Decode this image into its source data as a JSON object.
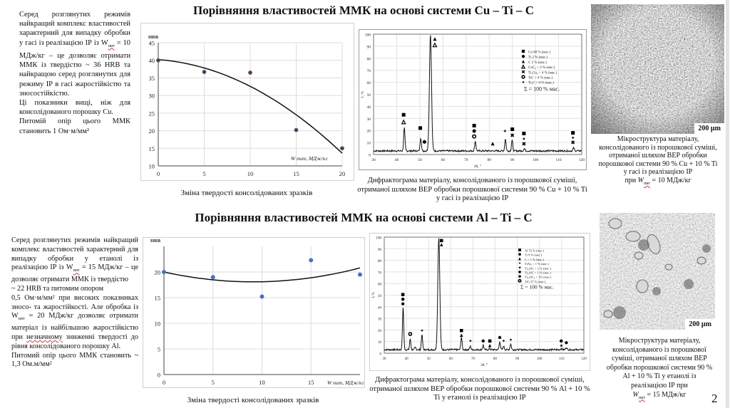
{
  "page": {
    "number": "2"
  },
  "section_cu": {
    "title": "Порівняння властивостей ММК на основі системи Cu – Ti – C",
    "description": [
      "Серед розглянутих режимів найкращий комплекс властивостей характерний для випадку обробки у гасі із реалізацією ІР із W",
      "пит",
      " = 10 МДж/кг – це дозволяє отримати ММК із твердістю ~ 36 HRB та найкращою серед розглянутих для режиму ІР в гасі жаростійкістю та зносостійкістю.",
      "Ці показники вищі, ніж для консолідованого порошку Cu.",
      "Питомій опір цього ММК становить 1 Ом·м/мм²"
    ],
    "hardness_caption": "Зміна твердості консолідованих зразків",
    "xrd_caption": "Дифрактограма матеріалу, консолідованого із порошкової суміші, отриманої шляхом ВЕР обробки порошкової системи 90 % Cu + 10 % Ti у гасі із реалізацією ІР",
    "micro_caption_lines": [
      "Мікроструктура матеріалу,",
      "консолідованого із порошкової суміші,",
      "отриманої шляхом ВЕР обробки",
      "порошкової системи 90 % Cu + 10 % Ti",
      "у гасі із реалізацією ІР"
    ],
    "micro_caption_last": {
      "pre": "при ",
      "w": "W",
      "sub": "пит",
      "post": " = 10 МДж/кг"
    },
    "scale_bar": "200 µm"
  },
  "section_al": {
    "title": "Порівняння властивостей ММК на основі системи Al – Ti – C",
    "description": [
      "Серед розглянутих режимів найкращий комплекс властивостей характерний для випадку обробки у етанолі із реалізацією ІР із W",
      "пит",
      " = 15 МДж/кг – це дозволяє отримати ММК із твердістю",
      "~ 22 HRB та питомим опором",
      "0,5 Ом·м/мм² при високих показниках зносо- та жаростійкості. Але обробка із W",
      "пит",
      " = 20 МДж/кг дозволяє отримати матеріал із найбільшою жаростійкістю при ",
      "незначному",
      " зниженні твердості до рівня консолідованого порошку Al.",
      "Питомий опір цього ММК становить ~ 1,3 Ом.м/мм²"
    ],
    "hardness_caption": "Зміна твердості консолідованих зразків",
    "xrd_caption": "Дифрактограма матеріалу, консолідованого із порошкової суміші, отриманої шляхом ВЕР обробки порошкової системи 90 % Al + 10 % Ti у етанолі із реалізацією ІР",
    "micro_caption_lines": [
      "Мікроструктура матеріалу,",
      "консолідованого із порошкової",
      "суміші, отриманої шляхом ВЕР",
      "обробки порошкової системи 90 %",
      "Al + 10 % Ti у етанолі із",
      "реалізацією ІР при"
    ],
    "micro_caption_last": {
      "pre": "",
      "w": "W",
      "sub": "пит",
      "post": " = 15 МДж/кг"
    },
    "scale_bar": "200 µm"
  },
  "chart_data": [
    {
      "id": "cu_hardness",
      "type": "scatter",
      "title": "",
      "ylabel": "HRB",
      "xlabel": "W пит, МДж/кг",
      "x": [
        0,
        5,
        10,
        15,
        20
      ],
      "y": [
        40,
        36.7,
        36.5,
        20.2,
        15
      ],
      "trendline": {
        "type": "polynomial",
        "x": [
          0,
          5,
          10,
          15,
          20
        ],
        "y": [
          40.2,
          37.8,
          32.6,
          24.6,
          13.6
        ]
      },
      "xlim": [
        0,
        20
      ],
      "ylim": [
        10,
        45
      ],
      "xticks": [
        0,
        5,
        10,
        15,
        20
      ],
      "yticks": [
        10,
        15,
        20,
        25,
        30,
        35,
        40,
        45
      ],
      "grid": true,
      "marker_color": "#2b3f8f",
      "marker_edge": "#b0604a"
    },
    {
      "id": "cu_xrd",
      "type": "line",
      "ylabel": "I, %",
      "xlabel": "2θ, °",
      "xlim": [
        30,
        120
      ],
      "ylim": [
        0,
        100
      ],
      "xticks": [
        30,
        40,
        50,
        60,
        70,
        80,
        90,
        100,
        110,
        120
      ],
      "yticks": [
        0,
        10,
        20,
        30,
        40,
        50,
        60,
        70,
        80,
        90,
        100
      ],
      "grid": true,
      "baseline": 3,
      "peaks": [
        {
          "x": 43.3,
          "y": 22
        },
        {
          "x": 50.4,
          "y": 14
        },
        {
          "x": 54.6,
          "y": 100
        },
        {
          "x": 74.0,
          "y": 11
        },
        {
          "x": 87.0,
          "y": 13
        },
        {
          "x": 89.9,
          "y": 12
        },
        {
          "x": 95.2,
          "y": 5
        },
        {
          "x": 116.5,
          "y": 5.5
        }
      ],
      "legend": [
        {
          "symbol": "square",
          "label": "Cu 88 % (мас.)"
        },
        {
          "symbol": "hexagon",
          "label": "Ti  2  % (мас.)"
        },
        {
          "symbol": "triangle",
          "label": "C 2 % (мас.)"
        },
        {
          "symbol": "triangle-open",
          "label": "CuC₂ < 4 %  (мас.)"
        },
        {
          "symbol": "cross",
          "label": "Ti₂Cu₃ < 4 %  (мас.)"
        },
        {
          "symbol": "circle-open",
          "label": "TiC < 4 % (мас.)"
        },
        {
          "symbol": "diamond",
          "label": "Ti₂C  < 4 % (мас.)"
        }
      ],
      "sum_label": "Σ = 100 % мас.",
      "legend_position": "top-right",
      "markers": [
        {
          "x": 43,
          "y": 33,
          "symbol": "square"
        },
        {
          "x": 43,
          "y": 27,
          "symbol": "triangle-open"
        },
        {
          "x": 50.2,
          "y": 22,
          "symbol": "square"
        },
        {
          "x": 52,
          "y": 10.5,
          "symbol": "hexagon"
        },
        {
          "x": 56.5,
          "y": 96,
          "symbol": "triangle"
        },
        {
          "x": 56.5,
          "y": 91,
          "symbol": "triangle-open"
        },
        {
          "x": 73.5,
          "y": 24,
          "symbol": "square"
        },
        {
          "x": 73.5,
          "y": 19.5,
          "symbol": "hexagon"
        },
        {
          "x": 73.5,
          "y": 15,
          "symbol": "circle-open"
        },
        {
          "x": 81.5,
          "y": 9,
          "symbol": "triangle"
        },
        {
          "x": 86.8,
          "y": 19.5,
          "symbol": "diamond"
        },
        {
          "x": 90,
          "y": 21,
          "symbol": "square"
        },
        {
          "x": 90,
          "y": 16,
          "symbol": "cross"
        },
        {
          "x": 95,
          "y": 17.5,
          "symbol": "square"
        },
        {
          "x": 95,
          "y": 13,
          "symbol": "diamond"
        },
        {
          "x": 95,
          "y": 9,
          "symbol": "cross"
        },
        {
          "x": 116.2,
          "y": 18,
          "symbol": "square"
        },
        {
          "x": 116.2,
          "y": 14,
          "symbol": "diamond"
        },
        {
          "x": 116.2,
          "y": 10,
          "symbol": "cross"
        }
      ]
    },
    {
      "id": "al_hardness",
      "type": "scatter",
      "title": "",
      "ylabel": "HRB",
      "xlabel": "W пит, МДж/кг",
      "x": [
        0,
        5,
        10,
        15,
        20
      ],
      "y": [
        20,
        19,
        15.2,
        22.3,
        19.5
      ],
      "trendline": {
        "type": "polynomial",
        "x": [
          0,
          5,
          10,
          15,
          20
        ],
        "y": [
          20,
          18.5,
          18.1,
          18.9,
          20.8
        ]
      },
      "xlim": [
        0,
        20
      ],
      "ylim": [
        0,
        25
      ],
      "xticks": [
        0,
        5,
        10,
        15
      ],
      "yticks": [
        0,
        5,
        10,
        15,
        20
      ],
      "grid": true,
      "marker_color": "#4472c4"
    },
    {
      "id": "al_xrd",
      "type": "line",
      "ylabel": "I, %",
      "xlabel": "2θ, °",
      "xlim": [
        30,
        120
      ],
      "ylim": [
        0,
        100
      ],
      "xticks": [
        30,
        40,
        50,
        60,
        70,
        80,
        90,
        100,
        110,
        120
      ],
      "yticks": [
        0,
        10,
        20,
        30,
        40,
        50,
        60,
        70,
        80,
        90,
        100
      ],
      "grid": true,
      "baseline": 3,
      "peaks": [
        {
          "x": 38.5,
          "y": 40
        },
        {
          "x": 41.7,
          "y": 12
        },
        {
          "x": 44,
          "y": 5
        },
        {
          "x": 47.0,
          "y": 16
        },
        {
          "x": 54.6,
          "y": 100
        },
        {
          "x": 64.8,
          "y": 14
        },
        {
          "x": 68.8,
          "y": 6
        },
        {
          "x": 74.6,
          "y": 7
        },
        {
          "x": 77.6,
          "y": 4
        },
        {
          "x": 82.1,
          "y": 10
        },
        {
          "x": 83.8,
          "y": 6
        },
        {
          "x": 87.0,
          "y": 8
        },
        {
          "x": 109.8,
          "y": 4
        },
        {
          "x": 112.1,
          "y": 5
        }
      ],
      "legend": [
        {
          "symbol": "square",
          "label": "Al 53 % (мас.)"
        },
        {
          "symbol": "hexagon",
          "label": "Ti 9 % (мас.)"
        },
        {
          "symbol": "triangle",
          "label": "C < 1 % (мас.)"
        },
        {
          "symbol": "diamond",
          "label": "TiAl₃ < 1 % (мас.)"
        },
        {
          "symbol": "star",
          "label": "Ti₃AlC < 1 % (мас.)"
        },
        {
          "symbol": "pentagon",
          "label": "Ti₂AlC < 1 % (мас.)"
        },
        {
          "symbol": "pentagon",
          "label": "Ti₃AlC₂ < 1% (мас.)"
        },
        {
          "symbol": "circle-open",
          "label": "TiC  37 % (мас.)"
        }
      ],
      "sum_label": "Σ = 100 % мас.",
      "legend_position": "top-right",
      "markers": [
        {
          "x": 38.4,
          "y": 50.5,
          "symbol": "square"
        },
        {
          "x": 38.4,
          "y": 46.5,
          "symbol": "hexagon"
        },
        {
          "x": 38.4,
          "y": 42.5,
          "symbol": "pentagon"
        },
        {
          "x": 41.7,
          "y": 16.5,
          "symbol": "circle-open"
        },
        {
          "x": 47.0,
          "y": 19.5,
          "symbol": "diamond"
        },
        {
          "x": 55.8,
          "y": 97,
          "symbol": "square"
        },
        {
          "x": 55.8,
          "y": 93.5,
          "symbol": "triangle"
        },
        {
          "x": 64.8,
          "y": 19.5,
          "symbol": "square"
        },
        {
          "x": 64.8,
          "y": 15.5,
          "symbol": "triangle"
        },
        {
          "x": 68.8,
          "y": 10.5,
          "symbol": "diamond"
        },
        {
          "x": 74.6,
          "y": 10.5,
          "symbol": "pentagon"
        },
        {
          "x": 77.6,
          "y": 10.5,
          "symbol": "square"
        },
        {
          "x": 77.6,
          "y": 6.5,
          "symbol": "triangle"
        },
        {
          "x": 82.1,
          "y": 13.5,
          "symbol": "pentagon"
        },
        {
          "x": 83.8,
          "y": 10.5,
          "symbol": "diamond"
        },
        {
          "x": 87.0,
          "y": 11.5,
          "symbol": "diamond"
        },
        {
          "x": 109.8,
          "y": 10.5,
          "symbol": "hexagon"
        },
        {
          "x": 109.8,
          "y": 6.5,
          "symbol": "star"
        },
        {
          "x": 112.1,
          "y": 9,
          "symbol": "pentagon"
        }
      ]
    }
  ]
}
